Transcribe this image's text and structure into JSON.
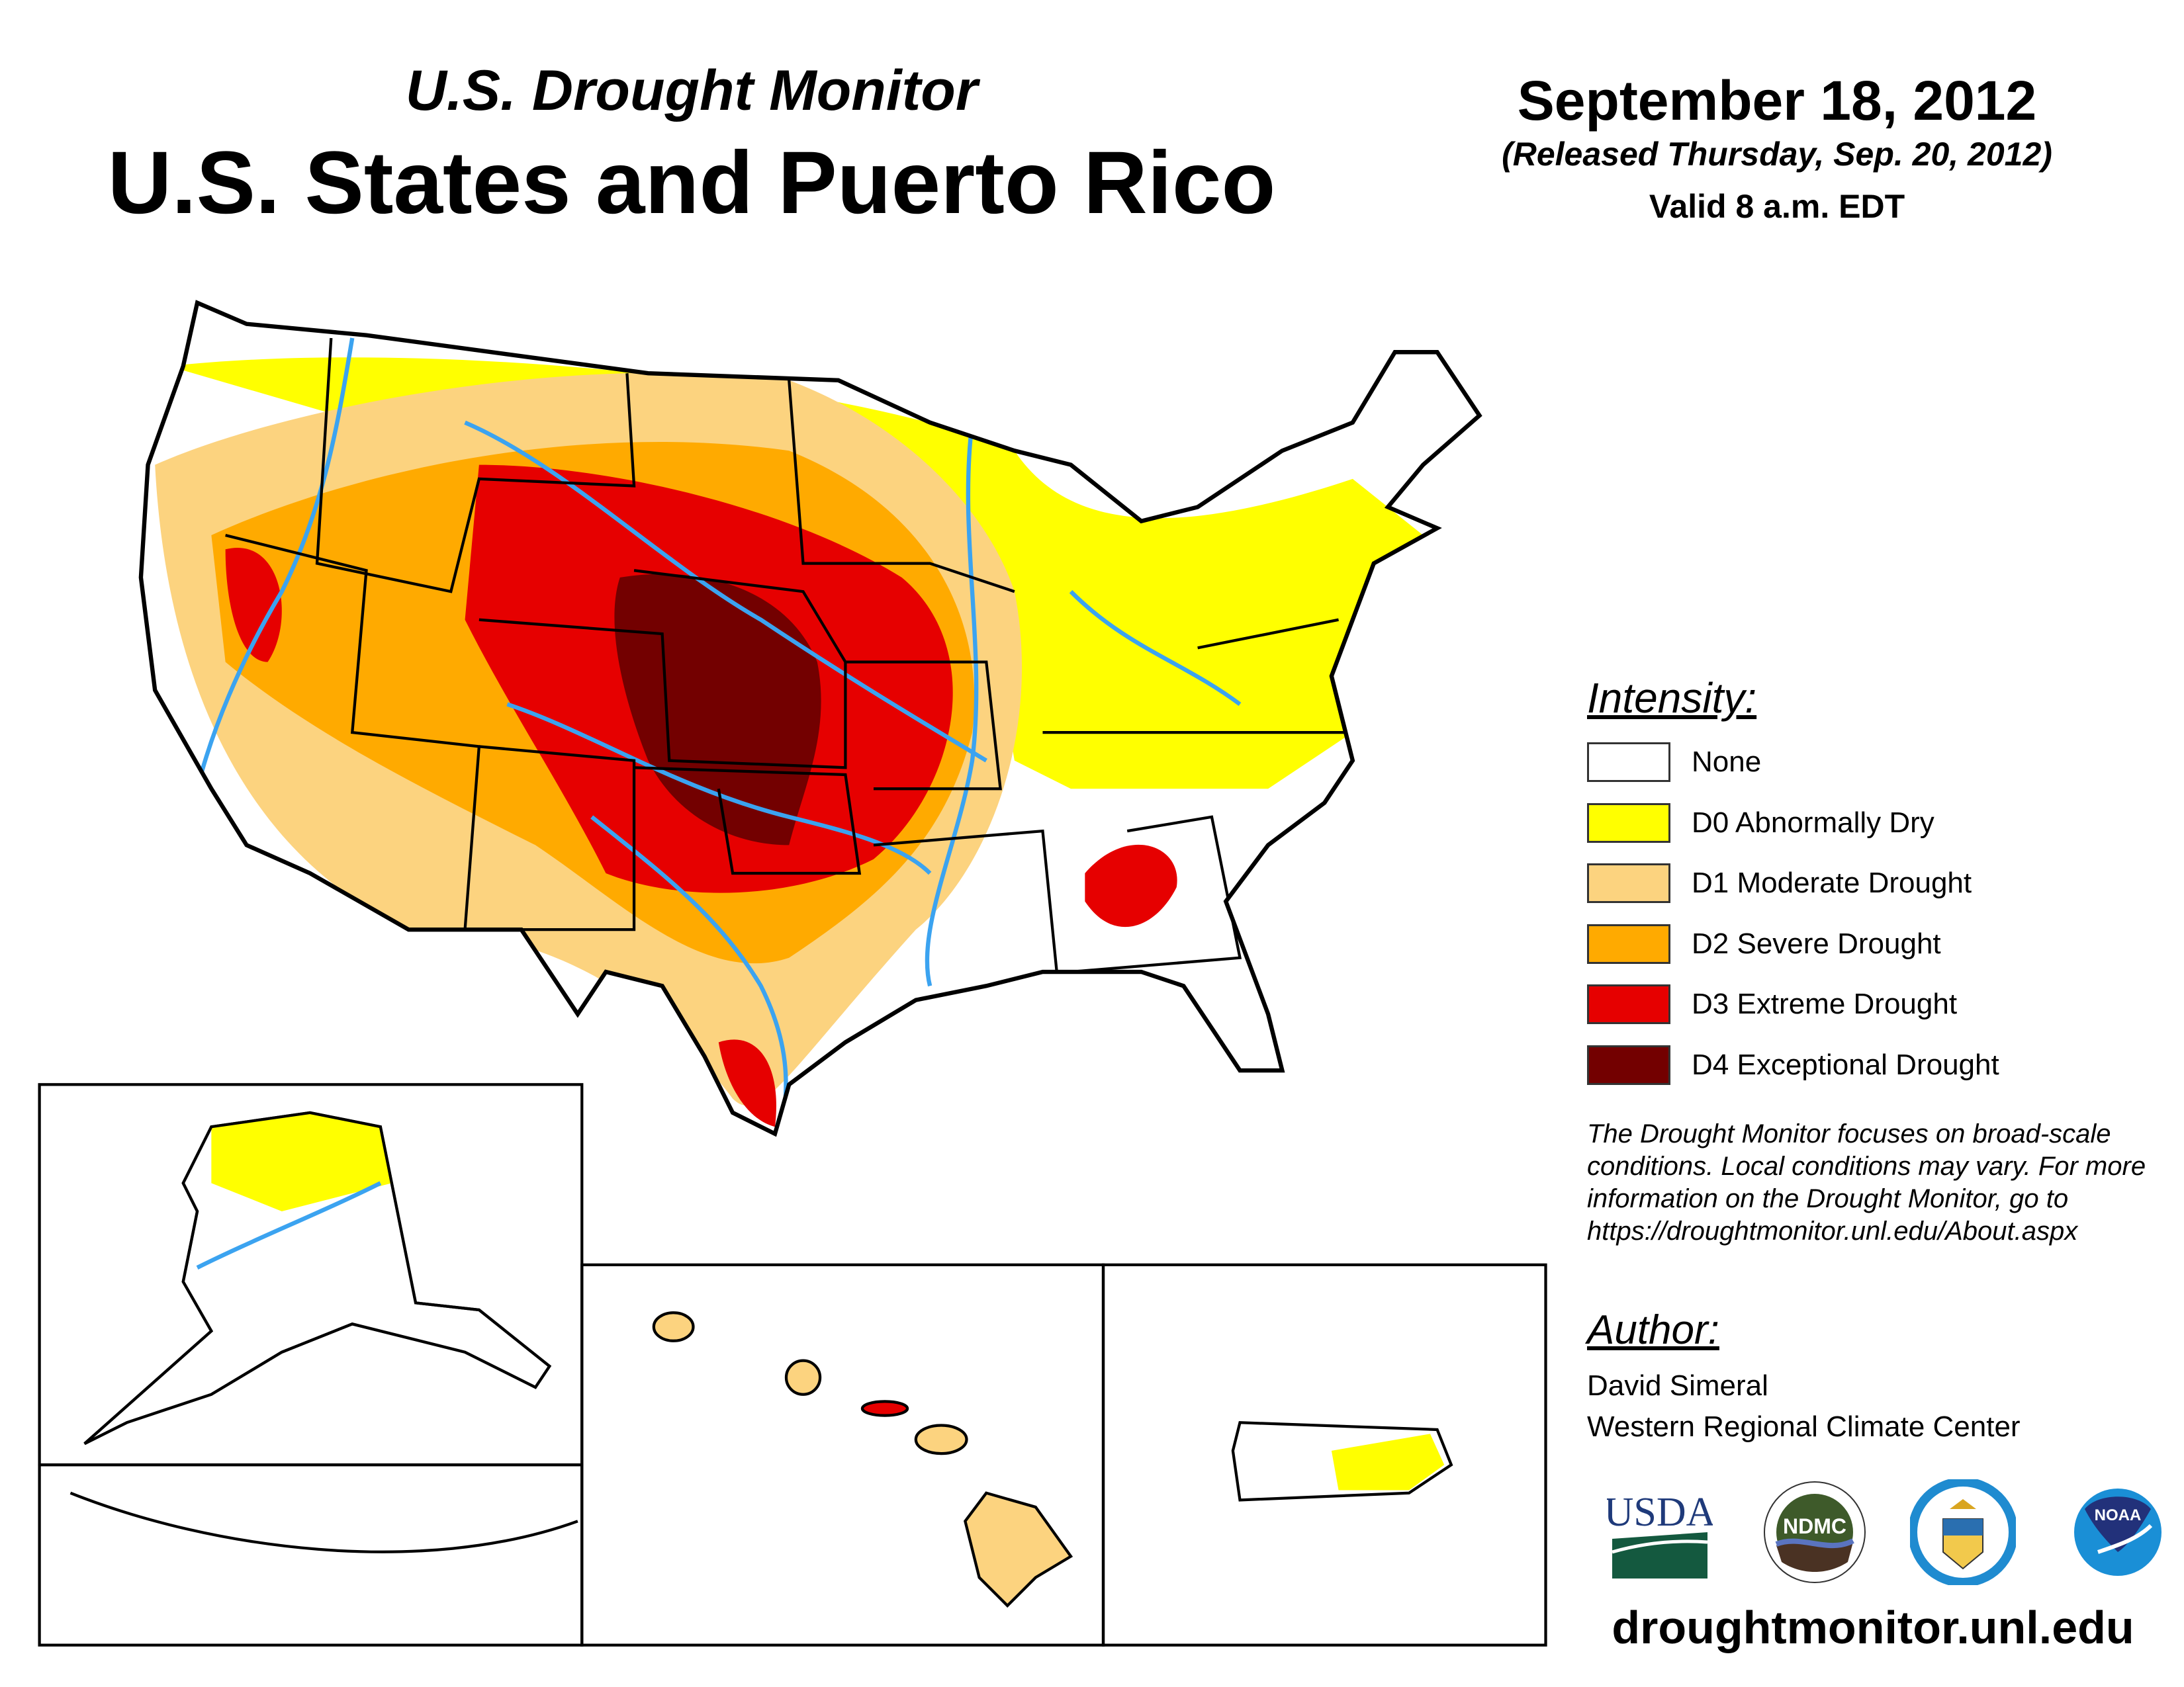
{
  "header": {
    "product": "U.S. Drought Monitor",
    "region": "U.S. States and Puerto Rico",
    "date": "September 18, 2012",
    "released": "(Released Thursday, Sep. 20, 2012)",
    "valid": "Valid 8 a.m. EDT"
  },
  "legend": {
    "title": "Intensity:",
    "items": [
      {
        "label": "None",
        "color": "#ffffff"
      },
      {
        "label": "D0 Abnormally Dry",
        "color": "#ffff00"
      },
      {
        "label": "D1 Moderate Drought",
        "color": "#fcd37f"
      },
      {
        "label": "D2 Severe Drought",
        "color": "#ffaa00"
      },
      {
        "label": "D3 Extreme Drought",
        "color": "#e60000"
      },
      {
        "label": "D4 Exceptional Drought",
        "color": "#730000"
      }
    ]
  },
  "disclaimer": [
    "The Drought Monitor focuses on broad-scale",
    "conditions. Local conditions may vary. For more",
    "information on the Drought Monitor, go to",
    "https://droughtmonitor.unl.edu/About.aspx"
  ],
  "author": {
    "heading": "Author:",
    "name": "David Simeral",
    "org": "Western Regional Climate Center"
  },
  "logos": [
    "USDA",
    "NDMC",
    "Department of Commerce",
    "NOAA"
  ],
  "website": "droughtmonitor.unl.edu",
  "colors": {
    "river": "#3ba3f0",
    "border": "#000000"
  }
}
